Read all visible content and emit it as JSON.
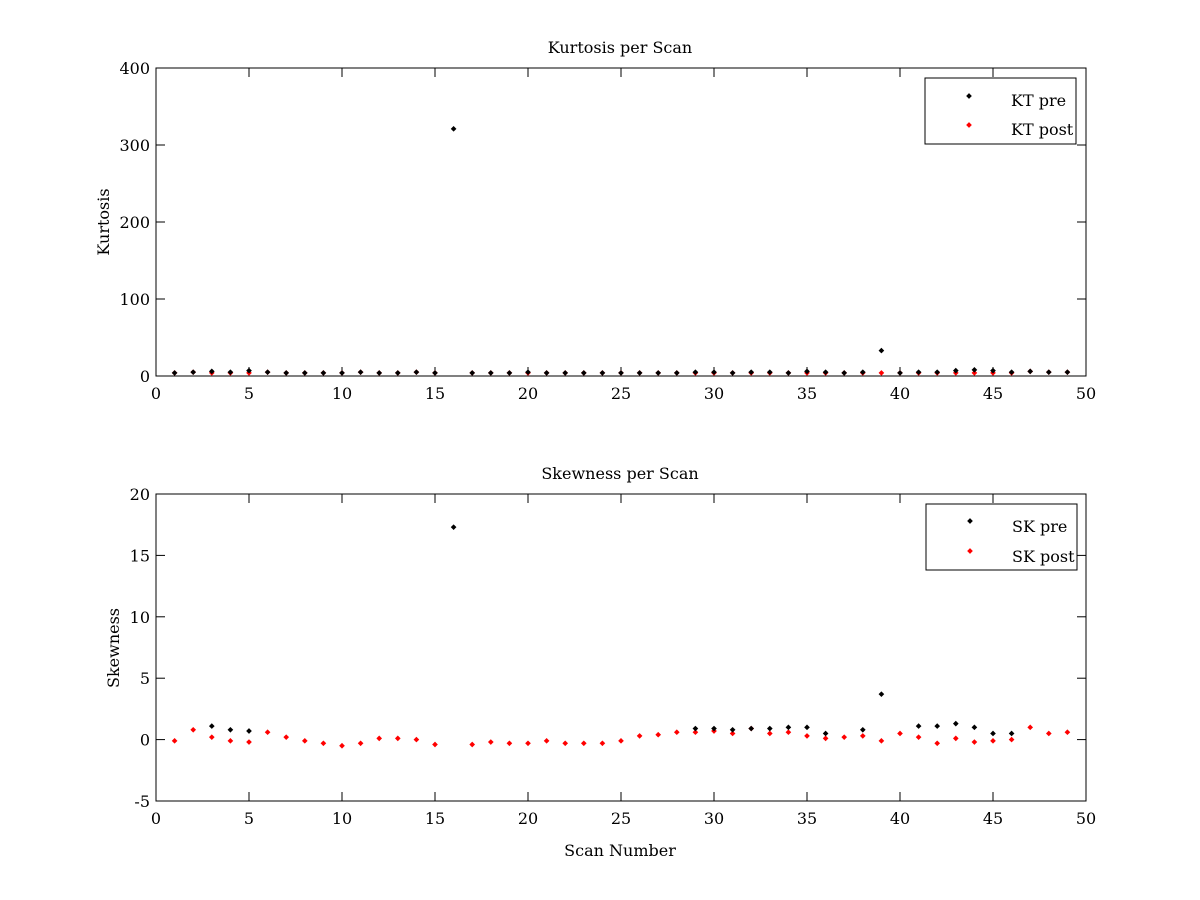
{
  "chart_data": [
    {
      "type": "scatter",
      "title": "Kurtosis per Scan",
      "xlabel": "",
      "ylabel": "Kurtosis",
      "xlim": [
        0,
        50
      ],
      "ylim": [
        0,
        400
      ],
      "xticks": [
        0,
        5,
        10,
        15,
        20,
        25,
        30,
        35,
        40,
        45,
        50
      ],
      "yticks": [
        0,
        100,
        200,
        300,
        400
      ],
      "grid": false,
      "legend": "top-right",
      "series": [
        {
          "name": "KT pre",
          "color": "#000000",
          "x": [
            1,
            2,
            3,
            4,
            5,
            6,
            7,
            8,
            9,
            10,
            11,
            12,
            13,
            14,
            15,
            16,
            17,
            18,
            19,
            20,
            21,
            22,
            23,
            24,
            25,
            26,
            27,
            28,
            29,
            30,
            31,
            32,
            33,
            34,
            35,
            36,
            37,
            38,
            39,
            40,
            41,
            42,
            43,
            44,
            45,
            46,
            47,
            48,
            49
          ],
          "y": [
            4,
            5,
            6,
            5,
            7,
            5,
            4,
            4,
            4,
            4,
            5,
            4,
            4,
            5,
            4,
            321,
            4,
            4,
            4,
            5,
            4,
            4,
            4,
            4,
            4,
            4,
            4,
            4,
            5,
            5,
            4,
            5,
            5,
            4,
            6,
            5,
            4,
            5,
            33,
            4,
            5,
            5,
            7,
            8,
            7,
            5,
            6,
            5,
            5
          ]
        },
        {
          "name": "KT post",
          "color": "#ff0000",
          "x": [
            1,
            2,
            3,
            4,
            5,
            6,
            7,
            8,
            9,
            10,
            11,
            12,
            13,
            14,
            15,
            17,
            18,
            19,
            20,
            21,
            22,
            23,
            24,
            25,
            26,
            27,
            28,
            29,
            30,
            31,
            32,
            33,
            34,
            35,
            36,
            37,
            38,
            39,
            40,
            41,
            42,
            43,
            44,
            45,
            46,
            47,
            48,
            49
          ],
          "y": [
            4,
            5,
            4,
            4,
            4,
            5,
            4,
            4,
            4,
            4,
            5,
            4,
            4,
            5,
            4,
            4,
            4,
            4,
            4,
            4,
            4,
            4,
            4,
            4,
            4,
            4,
            4,
            4,
            4,
            4,
            4,
            4,
            4,
            4,
            4,
            4,
            4,
            4,
            4,
            4,
            4,
            4,
            4,
            4,
            4,
            6,
            5,
            5
          ]
        }
      ]
    },
    {
      "type": "scatter",
      "title": "Skewness per Scan",
      "xlabel": "Scan Number",
      "ylabel": "Skewness",
      "xlim": [
        0,
        50
      ],
      "ylim": [
        -5,
        20
      ],
      "xticks": [
        0,
        5,
        10,
        15,
        20,
        25,
        30,
        35,
        40,
        45,
        50
      ],
      "yticks": [
        -5,
        0,
        5,
        10,
        15,
        20
      ],
      "grid": false,
      "legend": "top-right",
      "series": [
        {
          "name": "SK pre",
          "color": "#000000",
          "x": [
            3,
            4,
            5,
            16,
            29,
            30,
            31,
            32,
            33,
            34,
            35,
            36,
            38,
            39,
            41,
            42,
            43,
            44,
            45,
            46
          ],
          "y": [
            1.1,
            0.8,
            0.7,
            17.3,
            0.9,
            0.9,
            0.8,
            0.9,
            0.9,
            1.0,
            1.0,
            0.5,
            0.8,
            3.7,
            1.1,
            1.1,
            1.3,
            1.0,
            0.5,
            0.5
          ]
        },
        {
          "name": "SK post",
          "color": "#ff0000",
          "x": [
            1,
            2,
            3,
            4,
            5,
            6,
            7,
            8,
            9,
            10,
            11,
            12,
            13,
            14,
            15,
            17,
            18,
            19,
            20,
            21,
            22,
            23,
            24,
            25,
            26,
            27,
            28,
            29,
            30,
            31,
            32,
            33,
            34,
            35,
            36,
            37,
            38,
            39,
            40,
            41,
            42,
            43,
            44,
            45,
            46,
            47,
            48,
            49
          ],
          "y": [
            -0.1,
            0.8,
            0.2,
            -0.1,
            -0.2,
            0.6,
            0.2,
            -0.1,
            -0.3,
            -0.5,
            -0.3,
            0.1,
            0.1,
            0.0,
            -0.4,
            -0.4,
            -0.2,
            -0.3,
            -0.3,
            -0.1,
            -0.3,
            -0.3,
            -0.3,
            -0.1,
            0.3,
            0.4,
            0.6,
            0.6,
            0.7,
            0.5,
            0.9,
            0.5,
            0.6,
            0.3,
            0.1,
            0.2,
            0.3,
            -0.1,
            0.5,
            0.2,
            -0.3,
            0.1,
            -0.2,
            -0.1,
            0.0,
            1.0,
            0.5,
            0.6
          ]
        }
      ]
    }
  ]
}
